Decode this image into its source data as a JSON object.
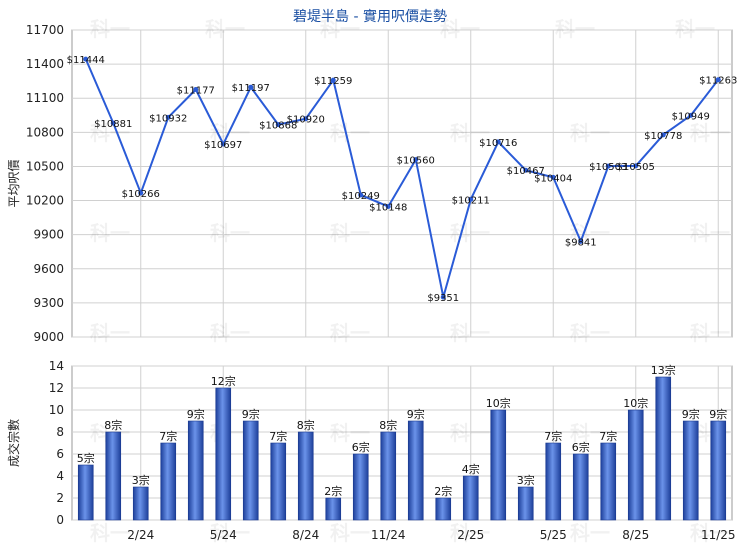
{
  "title": "碧堤半島 - 實用呎價走勢",
  "watermark": "科一",
  "colors": {
    "line": "#2a5bd7",
    "bar": "#2f62cc",
    "grid": "#d0d0d0",
    "text": "#222222"
  },
  "chart_data": [
    {
      "type": "line",
      "ylabel": "平均呎價",
      "ylim": [
        9000,
        11700
      ],
      "yticks": [
        9000,
        9300,
        9600,
        9900,
        10200,
        10500,
        10800,
        11100,
        11400,
        11700
      ],
      "x_tick_labels": [
        "2/24",
        "5/24",
        "8/24",
        "11/24",
        "2/25",
        "5/25",
        "8/25",
        "11/25"
      ],
      "point_labels": [
        "$11444",
        "$10881",
        "$10266",
        "$10932",
        "$11177",
        "$10697",
        "$11197",
        "$10868",
        "$10920",
        "$11259",
        "$10249",
        "$10148",
        "$10560",
        "$9351",
        "$10211",
        "$10716",
        "$10467",
        "$10404",
        "$9841",
        "$10503",
        "$10505",
        "$10778",
        "$10949",
        "$11263"
      ],
      "values": [
        11444,
        10881,
        10266,
        10932,
        11177,
        10697,
        11197,
        10868,
        10920,
        11259,
        10249,
        10148,
        10560,
        9351,
        10211,
        10716,
        10467,
        10404,
        9841,
        10503,
        10505,
        10778,
        10949,
        11263
      ]
    },
    {
      "type": "bar",
      "ylabel": "成交宗數",
      "ylim": [
        0,
        14
      ],
      "yticks": [
        0,
        2,
        4,
        6,
        8,
        10,
        12,
        14
      ],
      "x_tick_labels": [
        "2/24",
        "5/24",
        "8/24",
        "11/24",
        "2/25",
        "5/25",
        "8/25",
        "11/25"
      ],
      "bar_labels": [
        "5宗",
        "8宗",
        "3宗",
        "7宗",
        "9宗",
        "12宗",
        "9宗",
        "7宗",
        "8宗",
        "2宗",
        "6宗",
        "8宗",
        "9宗",
        "2宗",
        "4宗",
        "10宗",
        "3宗",
        "7宗",
        "6宗",
        "7宗",
        "10宗",
        "13宗",
        "9宗",
        "9宗"
      ],
      "values": [
        5,
        8,
        3,
        7,
        9,
        12,
        9,
        7,
        8,
        2,
        6,
        8,
        9,
        2,
        4,
        10,
        3,
        7,
        6,
        7,
        10,
        13,
        9,
        9
      ]
    }
  ]
}
